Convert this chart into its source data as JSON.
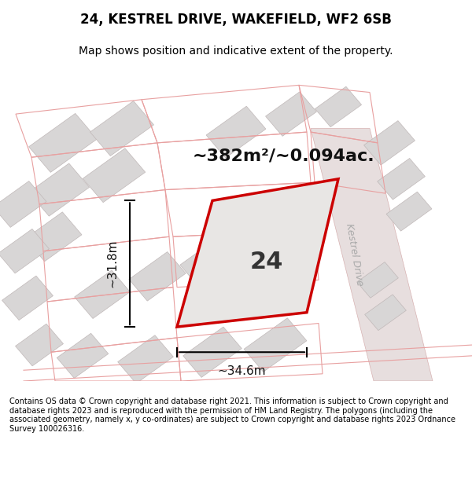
{
  "title": "24, KESTREL DRIVE, WAKEFIELD, WF2 6SB",
  "subtitle": "Map shows position and indicative extent of the property.",
  "footer": "Contains OS data © Crown copyright and database right 2021. This information is subject to Crown copyright and database rights 2023 and is reproduced with the permission of HM Land Registry. The polygons (including the associated geometry, namely x, y co-ordinates) are subject to Crown copyright and database rights 2023 Ordnance Survey 100026316.",
  "area_label": "~382m²/~0.094ac.",
  "plot_number": "24",
  "dim_width": "~34.6m",
  "dim_height": "~31.8m",
  "street_label": "Kestrel Drive",
  "bg_color": "#f0eeee",
  "map_bg": "#f5f4f4",
  "title_bar_color": "#ffffff",
  "footer_bar_color": "#ffffff",
  "plot_fill": "#e8e6e6",
  "plot_edge_color": "#cc0000",
  "road_color": "#e8d8d8",
  "building_fill": "#d8d6d6",
  "building_edge": "#c0b8b8"
}
